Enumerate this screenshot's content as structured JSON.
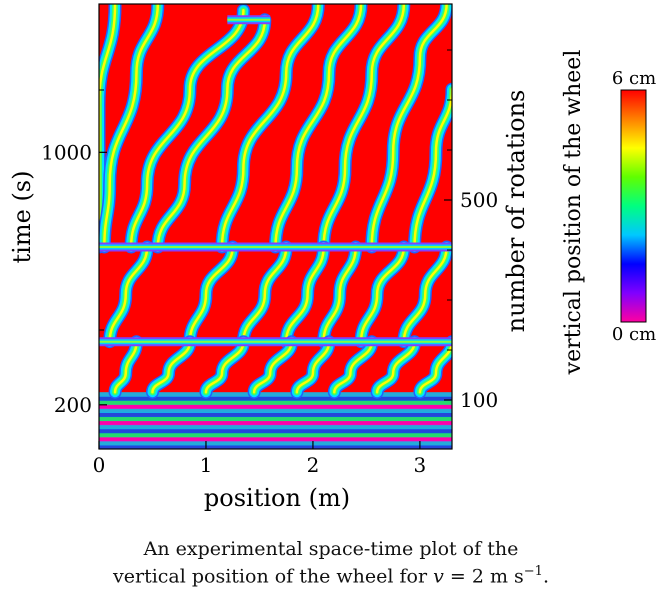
{
  "chart_data": {
    "type": "heatmap",
    "xlabel": "position (m)",
    "ylabel": "time (s)",
    "y2label": "number of rotations",
    "xlim": [
      0,
      3.3
    ],
    "ylim": [
      60,
      1470
    ],
    "x_ticks": [
      {
        "value": 0,
        "label": "0"
      },
      {
        "value": 1,
        "label": "1"
      },
      {
        "value": 2,
        "label": "2"
      },
      {
        "value": 3,
        "label": "3"
      }
    ],
    "y_ticks": [
      {
        "value": 200,
        "label": "200"
      },
      {
        "value": 1000,
        "label": "1000"
      }
    ],
    "y2_ticks": [
      {
        "value": 100,
        "label": "100"
      },
      {
        "value": 500,
        "label": "500"
      }
    ],
    "colorbar": {
      "label": "vertical position of the wheel",
      "min": 0,
      "max": 6,
      "min_label": "0 cm",
      "max_label": "6 cm",
      "colors": [
        "#ff00a0",
        "#8000ff",
        "#0000ff",
        "#00c8ff",
        "#00ff80",
        "#60ff00",
        "#ffff00",
        "#ff8000",
        "#ff0000"
      ]
    },
    "background_color": "#ff0000",
    "ripple_branches": [
      {
        "t": [
          1470,
          1150,
          850,
          700
        ],
        "x": [
          0.15,
          0.0,
          0.0,
          0.0
        ]
      },
      {
        "t": [
          1470,
          1250,
          900,
          700
        ],
        "x": [
          0.55,
          0.35,
          0.1,
          0.05
        ]
      },
      {
        "t": [
          1450,
          1200,
          900,
          700
        ],
        "x": [
          1.35,
          0.85,
          0.45,
          0.3
        ]
      },
      {
        "t": [
          1420,
          1200,
          900,
          700
        ],
        "x": [
          1.55,
          1.2,
          0.8,
          0.55
        ]
      },
      {
        "t": [
          1470,
          1250,
          950,
          700
        ],
        "x": [
          2.05,
          1.75,
          1.35,
          1.15
        ]
      },
      {
        "t": [
          1470,
          1250,
          950,
          700
        ],
        "x": [
          2.45,
          2.15,
          1.85,
          1.65
        ]
      },
      {
        "t": [
          1470,
          1250,
          950,
          700
        ],
        "x": [
          2.85,
          2.55,
          2.3,
          2.1
        ]
      },
      {
        "t": [
          1470,
          1300,
          1000,
          700
        ],
        "x": [
          3.25,
          3.0,
          2.75,
          2.55
        ]
      },
      {
        "t": [
          1200,
          1000,
          700
        ],
        "x": [
          3.3,
          3.15,
          2.95
        ]
      },
      {
        "t": [
          700,
          550,
          400
        ],
        "x": [
          0.45,
          0.25,
          0.1
        ]
      },
      {
        "t": [
          700,
          550,
          400
        ],
        "x": [
          1.25,
          1.0,
          0.85
        ]
      },
      {
        "t": [
          700,
          550,
          400
        ],
        "x": [
          1.75,
          1.55,
          1.35
        ]
      },
      {
        "t": [
          700,
          550,
          400
        ],
        "x": [
          2.1,
          1.95,
          1.75
        ]
      },
      {
        "t": [
          700,
          550,
          400
        ],
        "x": [
          2.4,
          2.25,
          2.1
        ]
      },
      {
        "t": [
          700,
          550,
          400
        ],
        "x": [
          2.85,
          2.6,
          2.45
        ]
      },
      {
        "t": [
          700,
          550,
          400
        ],
        "x": [
          3.25,
          3.05,
          2.85
        ]
      },
      {
        "t": [
          400,
          300,
          240
        ],
        "x": [
          0.35,
          0.25,
          0.15
        ]
      },
      {
        "t": [
          400,
          300,
          240
        ],
        "x": [
          0.85,
          0.65,
          0.5
        ]
      },
      {
        "t": [
          400,
          300,
          240
        ],
        "x": [
          1.35,
          1.15,
          1.0
        ]
      },
      {
        "t": [
          400,
          300,
          240
        ],
        "x": [
          1.8,
          1.6,
          1.45
        ]
      },
      {
        "t": [
          400,
          300,
          240
        ],
        "x": [
          2.15,
          2.0,
          1.85
        ]
      },
      {
        "t": [
          400,
          300,
          240
        ],
        "x": [
          2.55,
          2.35,
          2.2
        ]
      },
      {
        "t": [
          400,
          300,
          240
        ],
        "x": [
          2.95,
          2.75,
          2.6
        ]
      },
      {
        "t": [
          400,
          300,
          240
        ],
        "x": [
          3.3,
          3.15,
          3.0
        ]
      }
    ],
    "merge_lines": [
      {
        "t": 700,
        "x": [
          0.0,
          3.3
        ]
      },
      {
        "t": 400,
        "x": [
          0.0,
          3.3
        ]
      },
      {
        "t": 1420,
        "x": [
          1.2,
          1.6
        ]
      }
    ],
    "early_band": {
      "t": [
        60,
        240
      ],
      "colors": [
        "#0050ff",
        "#00c8ff",
        "#ff00c8",
        "#00ff80"
      ]
    }
  },
  "caption": {
    "line1": "An experimental space-time plot of the",
    "line2_prefix": "vertical position of the wheel for ",
    "line2_var": "v",
    "line2_eq": " = 2 m s",
    "line2_exp": "−1",
    "line2_end": "."
  }
}
